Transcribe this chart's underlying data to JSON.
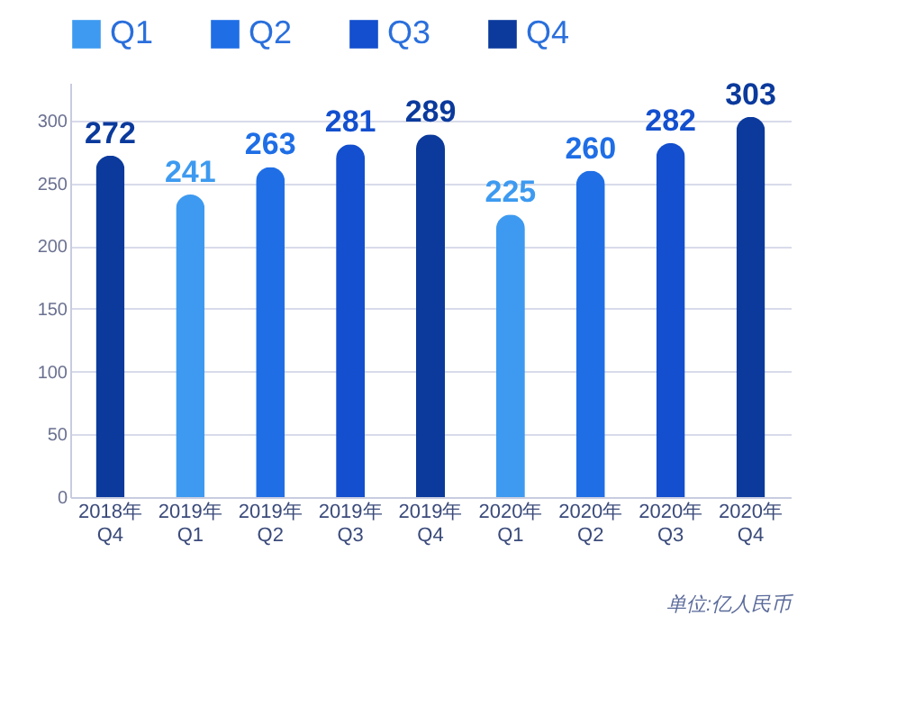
{
  "chart_data": {
    "type": "bar",
    "categories": [
      "2018年\nQ4",
      "2019年\nQ1",
      "2019年\nQ2",
      "2019年\nQ3",
      "2019年\nQ4",
      "2020年\nQ1",
      "2020年\nQ2",
      "2020年\nQ3",
      "2020年\nQ4"
    ],
    "series": [
      {
        "name": "Q1",
        "color": "#3d9af0",
        "values": [
          null,
          241,
          null,
          null,
          null,
          225,
          null,
          null,
          null
        ]
      },
      {
        "name": "Q2",
        "color": "#1f6ee6",
        "values": [
          null,
          null,
          263,
          null,
          null,
          null,
          260,
          null,
          null
        ]
      },
      {
        "name": "Q3",
        "color": "#134fce",
        "values": [
          null,
          null,
          null,
          281,
          null,
          null,
          null,
          282,
          null
        ]
      },
      {
        "name": "Q4",
        "color": "#0b3a9c",
        "values": [
          272,
          null,
          null,
          null,
          289,
          null,
          null,
          null,
          303
        ]
      }
    ],
    "ylim": [
      0,
      330
    ],
    "yticks": [
      0,
      50,
      100,
      150,
      200,
      250,
      300
    ],
    "grid": "y",
    "legend": "top",
    "data_labels": true,
    "annotations": [
      "单位:亿人民币"
    ]
  }
}
